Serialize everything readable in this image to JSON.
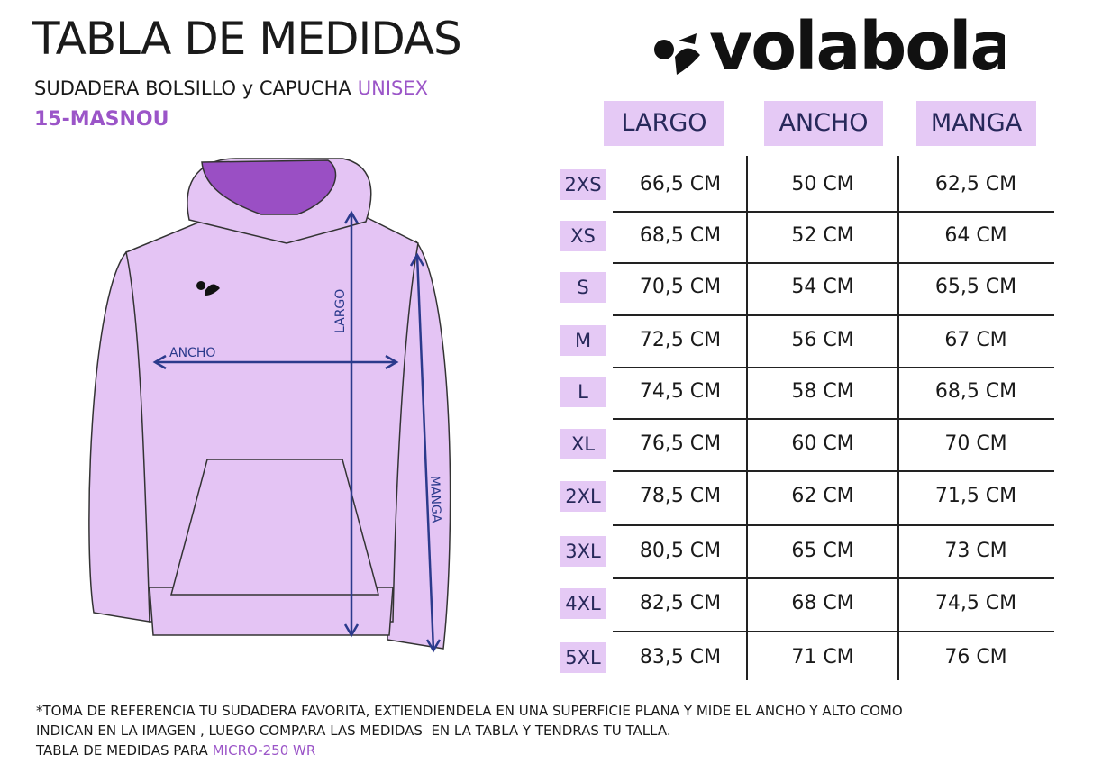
{
  "header": {
    "title": "TABLA DE MEDIDAS",
    "subtitle": "SUDADERA BOLSILLO y CAPUCHA",
    "subtitle_highlight": "UNISEX",
    "model": "15-MASNOU"
  },
  "brand": "volabola",
  "diagram": {
    "largo": "LARGO",
    "ancho": "ANCHO",
    "manga": "MANGA"
  },
  "table": {
    "columns": [
      "LARGO",
      "ANCHO",
      "MANGA"
    ],
    "rows": [
      [
        "2XS",
        "66,5 CM",
        "50 CM",
        "62,5 CM"
      ],
      [
        "XS",
        "68,5 CM",
        "52 CM",
        "64 CM"
      ],
      [
        "S",
        "70,5 CM",
        "54 CM",
        "65,5 CM"
      ],
      [
        "M",
        "72,5 CM",
        "56 CM",
        "67 CM"
      ],
      [
        "L",
        "74,5 CM",
        "58 CM",
        "68,5 CM"
      ],
      [
        "XL",
        "76,5 CM",
        "60 CM",
        "70 CM"
      ],
      [
        "2XL",
        "78,5 CM",
        "62 CM",
        "71,5 CM"
      ],
      [
        "3XL",
        "80,5 CM",
        "65 CM",
        "73 CM"
      ],
      [
        "4XL",
        "82,5 CM",
        "68 CM",
        "74,5 CM"
      ],
      [
        "5XL",
        "83,5 CM",
        "71 CM",
        "76 CM"
      ]
    ]
  },
  "footer": {
    "note_lines": [
      "*TOMA DE REFERENCIA TU SUDADERA FAVORITA, EXTIENDIENDELA EN UNA SUPERFICIE PLANA Y MIDE EL ANCHO Y ALTO COMO",
      "INDICAN EN LA IMAGEN , LUEGO COMPARA LAS MEDIDAS  EN LA TABLA Y TENDRAS TU TALLA."
    ],
    "fabric_prefix": "TABLA DE MEDIDAS PARA",
    "fabric": "MICRO-250 WR"
  }
}
